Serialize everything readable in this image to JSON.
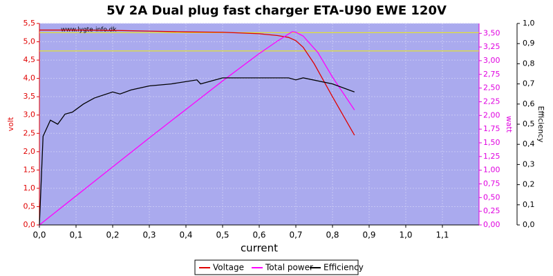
{
  "chart_data": {
    "type": "line",
    "title": "5V 2A Dual plug fast charger ETA-U90 EWE 120V",
    "watermark": "www.lygte-info.dk",
    "xlabel": "current",
    "ylabel": "volt",
    "y2label": "watt",
    "y3label": "Efficiency",
    "xlim": [
      0,
      1.2
    ],
    "ylim": [
      0,
      5.5
    ],
    "y2lim": [
      0,
      3.68
    ],
    "y3lim": [
      0,
      1
    ],
    "grid": true,
    "plot_background": "#aaaaee",
    "legend": "bottom",
    "reference_lines": [
      4.75,
      5.25
    ],
    "reference_color": "#f0f000",
    "xticks": [
      {
        "value": 0,
        "label": "0,0"
      },
      {
        "value": 0.1,
        "label": "0,1"
      },
      {
        "value": 0.2,
        "label": "0,2"
      },
      {
        "value": 0.3,
        "label": "0,3"
      },
      {
        "value": 0.4,
        "label": "0,4"
      },
      {
        "value": 0.5,
        "label": "0,5"
      },
      {
        "value": 0.6,
        "label": "0,6"
      },
      {
        "value": 0.7,
        "label": "0,7"
      },
      {
        "value": 0.8,
        "label": "0,8"
      },
      {
        "value": 0.9,
        "label": "0,9"
      },
      {
        "value": 1.0,
        "label": "1,0"
      },
      {
        "value": 1.1,
        "label": "1,1"
      }
    ],
    "yticks": [
      {
        "value": 0,
        "label": "0,0"
      },
      {
        "value": 0.5,
        "label": "0,5"
      },
      {
        "value": 1,
        "label": "1,0"
      },
      {
        "value": 1.5,
        "label": "1,5"
      },
      {
        "value": 2,
        "label": "2,0"
      },
      {
        "value": 2.5,
        "label": "2,5"
      },
      {
        "value": 3,
        "label": "3,0"
      },
      {
        "value": 3.5,
        "label": "3,5"
      },
      {
        "value": 4,
        "label": "4,0"
      },
      {
        "value": 4.5,
        "label": "4,5"
      },
      {
        "value": 5,
        "label": "5,0"
      },
      {
        "value": 5.5,
        "label": "5,5"
      }
    ],
    "y2ticks": [
      {
        "value": 0,
        "label": "0,00"
      },
      {
        "value": 0.25,
        "label": "0,25"
      },
      {
        "value": 0.5,
        "label": "0,50"
      },
      {
        "value": 0.75,
        "label": "0,75"
      },
      {
        "value": 1,
        "label": "1,00"
      },
      {
        "value": 1.25,
        "label": "1,25"
      },
      {
        "value": 1.5,
        "label": "1,50"
      },
      {
        "value": 1.75,
        "label": "1,75"
      },
      {
        "value": 2,
        "label": "2,00"
      },
      {
        "value": 2.25,
        "label": "2,25"
      },
      {
        "value": 2.5,
        "label": "2,50"
      },
      {
        "value": 2.75,
        "label": "2,75"
      },
      {
        "value": 3,
        "label": "3,00"
      },
      {
        "value": 3.25,
        "label": "3,25"
      },
      {
        "value": 3.5,
        "label": "3,50"
      }
    ],
    "y3ticks": [
      {
        "value": 0,
        "label": "0,0"
      },
      {
        "value": 0.1,
        "label": "0,1"
      },
      {
        "value": 0.2,
        "label": "0,2"
      },
      {
        "value": 0.3,
        "label": "0,3"
      },
      {
        "value": 0.4,
        "label": "0,4"
      },
      {
        "value": 0.5,
        "label": "0,5"
      },
      {
        "value": 0.6,
        "label": "0,6"
      },
      {
        "value": 0.7,
        "label": "0,7"
      },
      {
        "value": 0.8,
        "label": "0,8"
      },
      {
        "value": 0.9,
        "label": "0,9"
      },
      {
        "value": 1,
        "label": "1,0"
      }
    ],
    "series": [
      {
        "name": "Voltage",
        "color": "#e00000",
        "axis": "y",
        "x": [
          0,
          0.1,
          0.2,
          0.3,
          0.4,
          0.5,
          0.6,
          0.65,
          0.68,
          0.7,
          0.72,
          0.75,
          0.8,
          0.86
        ],
        "values": [
          5.32,
          5.32,
          5.31,
          5.29,
          5.27,
          5.26,
          5.22,
          5.17,
          5.12,
          5.03,
          4.85,
          4.4,
          3.5,
          2.45
        ]
      },
      {
        "name": "Total power",
        "color": "#ff00ff",
        "axis": "y2",
        "x": [
          0,
          0.1,
          0.2,
          0.3,
          0.4,
          0.5,
          0.6,
          0.65,
          0.69,
          0.7,
          0.72,
          0.76,
          0.8,
          0.86
        ],
        "values": [
          0,
          0.53,
          1.06,
          1.59,
          2.11,
          2.63,
          3.13,
          3.36,
          3.53,
          3.52,
          3.45,
          3.15,
          2.7,
          2.1
        ]
      },
      {
        "name": "Efficiency",
        "color": "#000000",
        "axis": "y3",
        "x": [
          0,
          0.01,
          0.03,
          0.05,
          0.07,
          0.09,
          0.12,
          0.15,
          0.2,
          0.22,
          0.25,
          0.3,
          0.36,
          0.43,
          0.44,
          0.5,
          0.6,
          0.68,
          0.7,
          0.72,
          0.8,
          0.86
        ],
        "values": [
          0,
          0.44,
          0.52,
          0.5,
          0.55,
          0.56,
          0.6,
          0.63,
          0.66,
          0.65,
          0.67,
          0.69,
          0.7,
          0.72,
          0.7,
          0.73,
          0.73,
          0.73,
          0.72,
          0.73,
          0.7,
          0.66
        ]
      }
    ]
  }
}
